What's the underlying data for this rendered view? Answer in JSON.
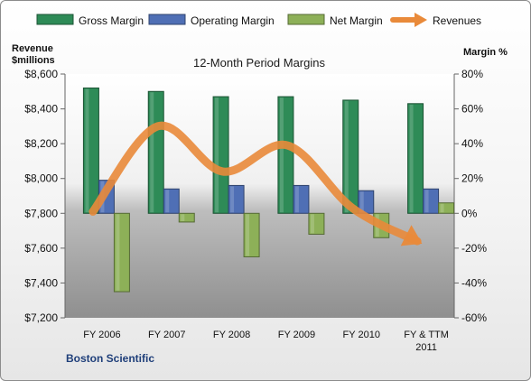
{
  "chart_data": {
    "type": "bar",
    "title": "12-Month Period Margins",
    "company": "Boston Scientific",
    "categories": [
      "FY 2006",
      "FY 2007",
      "FY 2008",
      "FY 2009",
      "FY 2010",
      "FY & TTM 2011"
    ],
    "category_lines": [
      [
        "FY 2006"
      ],
      [
        "FY 2007"
      ],
      [
        "FY 2008"
      ],
      [
        "FY 2009"
      ],
      [
        "FY 2010"
      ],
      [
        "FY & TTM",
        "2011"
      ]
    ],
    "left_axis": {
      "label_lines": [
        "Revenue",
        "$millions"
      ],
      "range": [
        7200,
        8600
      ],
      "ticks": [
        7200,
        7400,
        7600,
        7800,
        8000,
        8200,
        8400,
        8600
      ],
      "tick_labels": [
        "$7,200",
        "$7,400",
        "$7,600",
        "$7,800",
        "$8,000",
        "$8,200",
        "$8,400",
        "$8,600"
      ]
    },
    "right_axis": {
      "label": "Margin %",
      "range": [
        -60,
        80
      ],
      "ticks": [
        -60,
        -40,
        -20,
        0,
        20,
        40,
        60,
        80
      ],
      "tick_labels": [
        "-60%",
        "-40%",
        "-20%",
        "0%",
        "20%",
        "40%",
        "60%",
        "80%"
      ]
    },
    "series": [
      {
        "name": "Gross Margin",
        "kind": "bar",
        "axis": "right",
        "color": "#2e8b57",
        "values": [
          72,
          70,
          67,
          67,
          65,
          63
        ]
      },
      {
        "name": "Operating Margin",
        "kind": "bar",
        "axis": "right",
        "color": "#4f6fb5",
        "values": [
          19,
          14,
          16,
          16,
          13,
          14
        ]
      },
      {
        "name": "Net Margin",
        "kind": "bar",
        "axis": "right",
        "color": "#8db058",
        "values": [
          -45,
          -5,
          -25,
          -12,
          -14,
          6
        ]
      },
      {
        "name": "Revenues",
        "kind": "line",
        "axis": "left",
        "color": "#e98a3a",
        "values": [
          7810,
          8300,
          8040,
          8190,
          7830,
          7640
        ]
      }
    ],
    "legend": {
      "position": "top"
    },
    "grid": false
  }
}
